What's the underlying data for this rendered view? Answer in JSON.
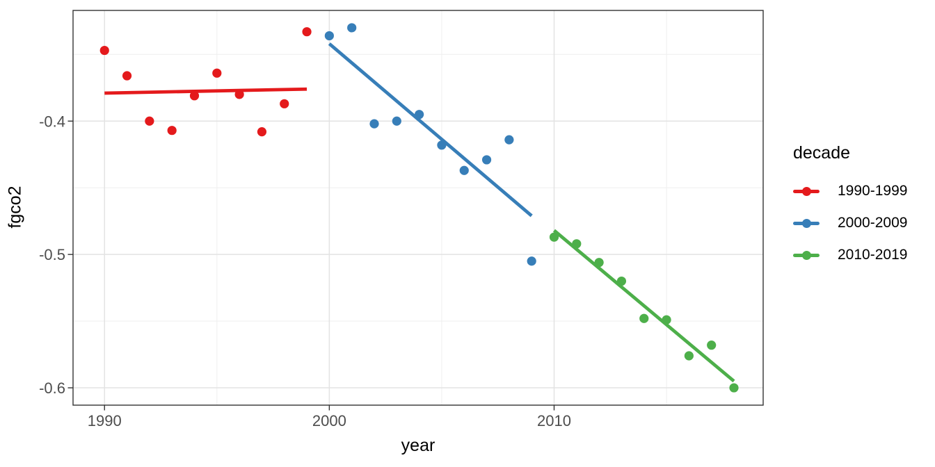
{
  "chart_data": {
    "type": "scatter",
    "xlabel": "year",
    "ylabel": "fgco2",
    "legend_title": "decade",
    "legend_position": "right",
    "grid": true,
    "xlim": [
      1988.6,
      2019.3
    ],
    "ylim": [
      -0.613,
      -0.317
    ],
    "x_ticks": [
      {
        "value": 1990,
        "label": "1990"
      },
      {
        "value": 2000,
        "label": "2000"
      },
      {
        "value": 2010,
        "label": "2010"
      }
    ],
    "x_minor_ticks": [
      1995,
      2005,
      2015
    ],
    "y_ticks": [
      {
        "value": -0.4,
        "label": "-0.4"
      },
      {
        "value": -0.5,
        "label": "-0.5"
      },
      {
        "value": -0.6,
        "label": "-0.6"
      }
    ],
    "y_minor_ticks": [
      -0.35,
      -0.45,
      -0.55
    ],
    "series": [
      {
        "name": "1990-1999",
        "color": "#E41A1C",
        "x": [
          1990,
          1991,
          1992,
          1993,
          1994,
          1995,
          1996,
          1997,
          1998,
          1999
        ],
        "y": [
          -0.347,
          -0.366,
          -0.4,
          -0.407,
          -0.381,
          -0.364,
          -0.38,
          -0.408,
          -0.387,
          -0.333
        ],
        "trend": {
          "x": [
            1990,
            1999
          ],
          "y": [
            -0.379,
            -0.376
          ]
        }
      },
      {
        "name": "2000-2009",
        "color": "#377EB8",
        "x": [
          2000,
          2001,
          2002,
          2003,
          2004,
          2005,
          2006,
          2007,
          2008,
          2009
        ],
        "y": [
          -0.336,
          -0.33,
          -0.402,
          -0.4,
          -0.395,
          -0.418,
          -0.437,
          -0.429,
          -0.414,
          -0.505
        ],
        "trend": {
          "x": [
            2000,
            2009
          ],
          "y": [
            -0.342,
            -0.471
          ]
        }
      },
      {
        "name": "2010-2019",
        "color": "#4DAF4A",
        "x": [
          2010,
          2011,
          2012,
          2013,
          2014,
          2015,
          2016,
          2017,
          2018
        ],
        "y": [
          -0.487,
          -0.492,
          -0.506,
          -0.52,
          -0.548,
          -0.549,
          -0.576,
          -0.568,
          -0.6
        ],
        "trend": {
          "x": [
            2010,
            2018
          ],
          "y": [
            -0.482,
            -0.595
          ]
        }
      }
    ],
    "theme": {
      "panel_background": "#FFFFFF",
      "panel_border": "#333333",
      "grid_major": "#E3E3E3",
      "grid_minor": "#F0F0F0",
      "tick_color": "#333333",
      "tick_label_color": "#4D4D4D"
    }
  }
}
